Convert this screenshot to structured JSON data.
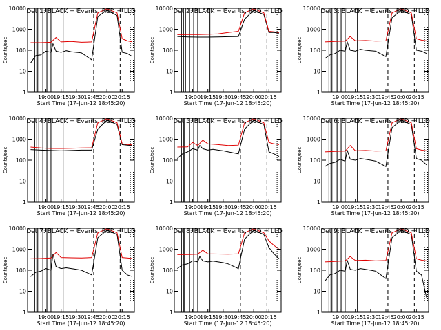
{
  "chart_data": [
    {
      "type": "line",
      "title": "Det 1: BLACK = Events, RED = LLD",
      "xlabel": "Start Time (17-Jun-12 18:45:20)",
      "ylabel": "Counts/sec",
      "x_ticks": [
        "19:00",
        "19:15",
        "19:30",
        "19:45",
        "20:00",
        "20:15"
      ],
      "x_range_minutes": [
        -3,
        102
      ],
      "ylim": [
        1,
        10000
      ],
      "y_scale": "log",
      "y_ticks": [
        "1",
        "10",
        "100",
        "1000",
        "10000"
      ],
      "series": [
        {
          "name": "Events",
          "color": "#000000",
          "x": [
            0,
            5,
            10,
            15,
            20,
            22,
            25,
            30,
            35,
            40,
            45,
            50,
            60,
            66,
            75,
            85,
            90,
            95,
            100
          ],
          "y": [
            25,
            55,
            60,
            90,
            80,
            200,
            90,
            80,
            95,
            85,
            80,
            75,
            35,
            4000,
            8000,
            4500,
            80,
            70,
            50
          ]
        },
        {
          "name": "LLD",
          "color": "#e00000",
          "x": [
            0,
            10,
            20,
            25,
            30,
            40,
            50,
            60,
            66,
            75,
            85,
            90,
            95,
            100
          ],
          "y": [
            230,
            230,
            240,
            400,
            250,
            260,
            240,
            250,
            6000,
            9500,
            6000,
            350,
            280,
            250
          ]
        }
      ],
      "markers_solid": [
        4,
        6,
        7,
        12,
        16,
        20,
        32
      ],
      "markers_dashed": [
        62,
        88
      ],
      "markers_dotted": [
        98,
        101
      ]
    },
    {
      "type": "line",
      "title": "Det 2: BLACK = Events, RED = LLD",
      "xlabel": "Start Time (17-Jun-12 18:45:20)",
      "ylabel": "Counts/sec",
      "x_ticks": [
        "19:00",
        "19:15",
        "19:30",
        "19:45",
        "20:00",
        "20:15"
      ],
      "x_range_minutes": [
        -3,
        102
      ],
      "ylim": [
        1,
        10000
      ],
      "y_scale": "log",
      "y_ticks": [
        "1",
        "10",
        "100",
        "1000",
        "10000"
      ],
      "series": [
        {
          "name": "Events",
          "color": "#000000",
          "x": [
            0,
            10,
            20,
            30,
            40,
            50,
            60,
            66,
            75,
            85,
            90,
            95,
            100
          ],
          "y": [
            450,
            430,
            420,
            420,
            430,
            440,
            450,
            3000,
            8000,
            5000,
            700,
            700,
            650
          ]
        },
        {
          "name": "LLD",
          "color": "#e00000",
          "x": [
            0,
            10,
            20,
            30,
            40,
            50,
            60,
            66,
            75,
            85,
            90,
            95,
            100
          ],
          "y": [
            550,
            560,
            560,
            570,
            600,
            700,
            800,
            6000,
            9500,
            6000,
            800,
            750,
            700
          ]
        }
      ],
      "markers_solid": [
        4,
        6,
        8,
        12,
        16,
        20,
        32
      ],
      "markers_dashed": [
        62,
        88
      ],
      "markers_dotted": [
        98,
        101
      ]
    },
    {
      "type": "line",
      "title": "Det 3: BLACK = Events, RED = LLD",
      "xlabel": "Start Time (17-Jun-12 18:45:20)",
      "ylabel": "Counts/sec",
      "x_ticks": [
        "19:00",
        "19:15",
        "19:30",
        "19:45",
        "20:00",
        "20:15"
      ],
      "x_range_minutes": [
        -3,
        102
      ],
      "ylim": [
        1,
        10000
      ],
      "y_scale": "log",
      "y_ticks": [
        "1",
        "10",
        "100",
        "1000",
        "10000"
      ],
      "series": [
        {
          "name": "Events",
          "color": "#000000",
          "x": [
            0,
            5,
            10,
            15,
            20,
            22,
            25,
            30,
            35,
            40,
            45,
            50,
            60,
            66,
            75,
            85,
            90,
            95,
            100
          ],
          "y": [
            40,
            60,
            70,
            100,
            90,
            250,
            100,
            90,
            110,
            100,
            95,
            90,
            50,
            3500,
            8000,
            5000,
            100,
            90,
            70
          ]
        },
        {
          "name": "LLD",
          "color": "#e00000",
          "x": [
            0,
            10,
            20,
            25,
            30,
            40,
            50,
            60,
            66,
            75,
            85,
            90,
            95,
            100
          ],
          "y": [
            250,
            260,
            270,
            450,
            280,
            290,
            270,
            280,
            6000,
            9500,
            6000,
            350,
            300,
            280
          ]
        }
      ],
      "markers_solid": [
        4,
        6,
        7,
        12,
        16,
        20,
        32
      ],
      "markers_dashed": [
        62,
        88
      ],
      "markers_dotted": [
        98,
        101
      ]
    },
    {
      "type": "line",
      "title": "Det 4: BLACK = Events, RED = LLD",
      "xlabel": "Start Time (17-Jun-12 18:45:20)",
      "ylabel": "Counts/sec",
      "x_ticks": [
        "19:00",
        "19:15",
        "19:30",
        "19:45",
        "20:00",
        "20:15"
      ],
      "x_range_minutes": [
        -3,
        102
      ],
      "ylim": [
        1,
        10000
      ],
      "y_scale": "log",
      "y_ticks": [
        "1",
        "10",
        "100",
        "1000",
        "10000"
      ],
      "series": [
        {
          "name": "Events",
          "color": "#000000",
          "x": [
            0,
            10,
            20,
            30,
            40,
            50,
            60,
            66,
            75,
            85,
            90,
            95,
            100
          ],
          "y": [
            320,
            300,
            290,
            280,
            290,
            300,
            300,
            3000,
            8000,
            5000,
            550,
            520,
            500
          ]
        },
        {
          "name": "LLD",
          "color": "#e00000",
          "x": [
            0,
            10,
            20,
            30,
            40,
            50,
            60,
            66,
            75,
            85,
            90,
            95,
            100
          ],
          "y": [
            420,
            380,
            360,
            360,
            370,
            380,
            390,
            6000,
            9500,
            6000,
            600,
            560,
            540
          ]
        }
      ],
      "markers_solid": [
        4,
        6,
        8,
        12,
        16,
        20,
        32
      ],
      "markers_dashed": [
        62,
        88
      ],
      "markers_dotted": [
        98,
        101
      ]
    },
    {
      "type": "line",
      "title": "Det 5: BLACK = Events, RED = LLD",
      "xlabel": "Start Time (17-Jun-12 18:45:20)",
      "ylabel": "Counts/sec",
      "x_ticks": [
        "19:00",
        "19:15",
        "19:30",
        "19:45",
        "20:00",
        "20:15"
      ],
      "x_range_minutes": [
        -3,
        102
      ],
      "ylim": [
        1,
        10000
      ],
      "y_scale": "log",
      "y_ticks": [
        "1",
        "10",
        "100",
        "1000",
        "10000"
      ],
      "series": [
        {
          "name": "Events",
          "color": "#000000",
          "x": [
            0,
            5,
            10,
            15,
            20,
            22,
            25,
            30,
            35,
            40,
            45,
            50,
            60,
            66,
            75,
            85,
            90,
            95,
            100
          ],
          "y": [
            120,
            200,
            250,
            350,
            300,
            500,
            350,
            300,
            330,
            300,
            280,
            250,
            200,
            3000,
            8000,
            5000,
            250,
            200,
            150
          ]
        },
        {
          "name": "LLD",
          "color": "#e00000",
          "x": [
            0,
            10,
            15,
            20,
            25,
            30,
            40,
            50,
            60,
            66,
            75,
            85,
            90,
            95,
            100
          ],
          "y": [
            420,
            430,
            700,
            500,
            900,
            600,
            550,
            500,
            520,
            6000,
            9500,
            6000,
            700,
            600,
            550
          ]
        }
      ],
      "markers_solid": [
        4,
        6,
        7,
        12,
        16,
        20,
        32
      ],
      "markers_dashed": [
        62,
        88
      ],
      "markers_dotted": [
        98,
        101
      ]
    },
    {
      "type": "line",
      "title": "Det 6: BLACK = Events, RED = LLD",
      "xlabel": "Start Time (17-Jun-12 18:45:20)",
      "ylabel": "Counts/sec",
      "x_ticks": [
        "19:00",
        "19:15",
        "19:30",
        "19:45",
        "20:00",
        "20:15"
      ],
      "x_range_minutes": [
        -3,
        102
      ],
      "ylim": [
        1,
        10000
      ],
      "y_scale": "log",
      "y_ticks": [
        "1",
        "10",
        "100",
        "1000",
        "10000"
      ],
      "series": [
        {
          "name": "Events",
          "color": "#000000",
          "x": [
            0,
            5,
            10,
            15,
            20,
            22,
            25,
            30,
            35,
            40,
            45,
            50,
            60,
            66,
            75,
            85,
            90,
            95,
            100
          ],
          "y": [
            50,
            70,
            80,
            110,
            90,
            300,
            110,
            100,
            120,
            110,
            100,
            90,
            50,
            3500,
            8000,
            5000,
            120,
            100,
            60
          ]
        },
        {
          "name": "LLD",
          "color": "#e00000",
          "x": [
            0,
            10,
            20,
            25,
            30,
            40,
            50,
            60,
            66,
            75,
            85,
            90,
            95,
            100
          ],
          "y": [
            250,
            260,
            270,
            500,
            280,
            290,
            270,
            280,
            6000,
            9500,
            6000,
            350,
            300,
            280
          ]
        }
      ],
      "markers_solid": [
        4,
        6,
        7,
        12,
        16,
        20,
        32
      ],
      "markers_dashed": [
        62,
        88
      ],
      "markers_dotted": [
        98,
        101
      ]
    },
    {
      "type": "line",
      "title": "Det 7: BLACK = Events, RED = LLD",
      "xlabel": "Start Time (17-Jun-12 18:45:20)",
      "ylabel": "Counts/sec",
      "x_ticks": [
        "19:00",
        "19:15",
        "19:30",
        "19:45",
        "20:00",
        "20:15"
      ],
      "x_range_minutes": [
        -3,
        102
      ],
      "ylim": [
        1,
        10000
      ],
      "y_scale": "log",
      "y_ticks": [
        "1",
        "10",
        "100",
        "1000",
        "10000"
      ],
      "series": [
        {
          "name": "Events",
          "color": "#000000",
          "x": [
            0,
            5,
            10,
            15,
            20,
            22,
            25,
            30,
            35,
            40,
            45,
            50,
            60,
            66,
            75,
            85,
            90,
            95,
            100
          ],
          "y": [
            50,
            80,
            90,
            120,
            100,
            600,
            150,
            120,
            130,
            120,
            110,
            100,
            60,
            3500,
            8000,
            5000,
            100,
            60,
            50
          ]
        },
        {
          "name": "LLD",
          "color": "#e00000",
          "x": [
            0,
            10,
            20,
            25,
            30,
            40,
            50,
            60,
            66,
            75,
            85,
            90,
            95,
            100
          ],
          "y": [
            350,
            360,
            380,
            700,
            400,
            390,
            380,
            400,
            6000,
            9500,
            6000,
            400,
            380,
            360
          ]
        }
      ],
      "markers_solid": [
        4,
        6,
        7,
        12,
        16,
        20,
        32
      ],
      "markers_dashed": [
        62,
        88
      ],
      "markers_dotted": [
        98,
        101
      ]
    },
    {
      "type": "line",
      "title": "Det 8: BLACK = Events, RED = LLD",
      "xlabel": "Start Time (17-Jun-12 18:45:20)",
      "ylabel": "Counts/sec",
      "x_ticks": [
        "19:00",
        "19:15",
        "19:30",
        "19:45",
        "20:00",
        "20:15"
      ],
      "x_range_minutes": [
        -3,
        102
      ],
      "ylim": [
        1,
        10000
      ],
      "y_scale": "log",
      "y_ticks": [
        "1",
        "10",
        "100",
        "1000",
        "10000"
      ],
      "series": [
        {
          "name": "Events",
          "color": "#000000",
          "x": [
            0,
            5,
            10,
            15,
            20,
            22,
            25,
            30,
            35,
            40,
            45,
            50,
            60,
            66,
            75,
            85,
            90,
            95,
            100
          ],
          "y": [
            120,
            180,
            200,
            280,
            250,
            450,
            280,
            250,
            270,
            250,
            230,
            200,
            120,
            3000,
            8000,
            5000,
            1200,
            600,
            350
          ]
        },
        {
          "name": "LLD",
          "color": "#e00000",
          "x": [
            0,
            10,
            20,
            25,
            30,
            40,
            50,
            60,
            66,
            75,
            85,
            90,
            95,
            100
          ],
          "y": [
            550,
            560,
            580,
            900,
            600,
            590,
            580,
            600,
            6000,
            9500,
            6000,
            2500,
            1500,
            1000
          ]
        }
      ],
      "markers_solid": [
        4,
        6,
        7,
        12,
        16,
        20,
        32
      ],
      "markers_dashed": [
        62,
        88
      ],
      "markers_dotted": [
        98,
        101
      ]
    },
    {
      "type": "line",
      "title": "Det 9: BLACK = Events, RED = LLD",
      "xlabel": "Start Time (17-Jun-12 18:45:20)",
      "ylabel": "Counts/sec",
      "x_ticks": [
        "19:00",
        "19:15",
        "19:30",
        "19:45",
        "20:00",
        "20:15"
      ],
      "x_range_minutes": [
        -3,
        102
      ],
      "ylim": [
        1,
        10000
      ],
      "y_scale": "log",
      "y_ticks": [
        "1",
        "10",
        "100",
        "1000",
        "10000"
      ],
      "series": [
        {
          "name": "Events",
          "color": "#000000",
          "x": [
            0,
            5,
            10,
            15,
            20,
            22,
            25,
            30,
            35,
            40,
            45,
            50,
            60,
            66,
            75,
            85,
            90,
            95,
            100
          ],
          "y": [
            30,
            60,
            70,
            100,
            90,
            300,
            110,
            100,
            120,
            110,
            100,
            90,
            40,
            3500,
            8000,
            5000,
            90,
            60,
            5
          ]
        },
        {
          "name": "LLD",
          "color": "#e00000",
          "x": [
            0,
            10,
            20,
            25,
            30,
            40,
            50,
            60,
            66,
            75,
            85,
            90,
            95,
            100
          ],
          "y": [
            250,
            260,
            280,
            450,
            290,
            300,
            280,
            290,
            6000,
            9500,
            6000,
            350,
            300,
            280
          ]
        }
      ],
      "markers_solid": [
        4,
        6,
        7,
        12,
        16,
        20,
        32
      ],
      "markers_dashed": [
        62,
        88
      ],
      "markers_dotted": [
        98,
        101
      ]
    }
  ]
}
